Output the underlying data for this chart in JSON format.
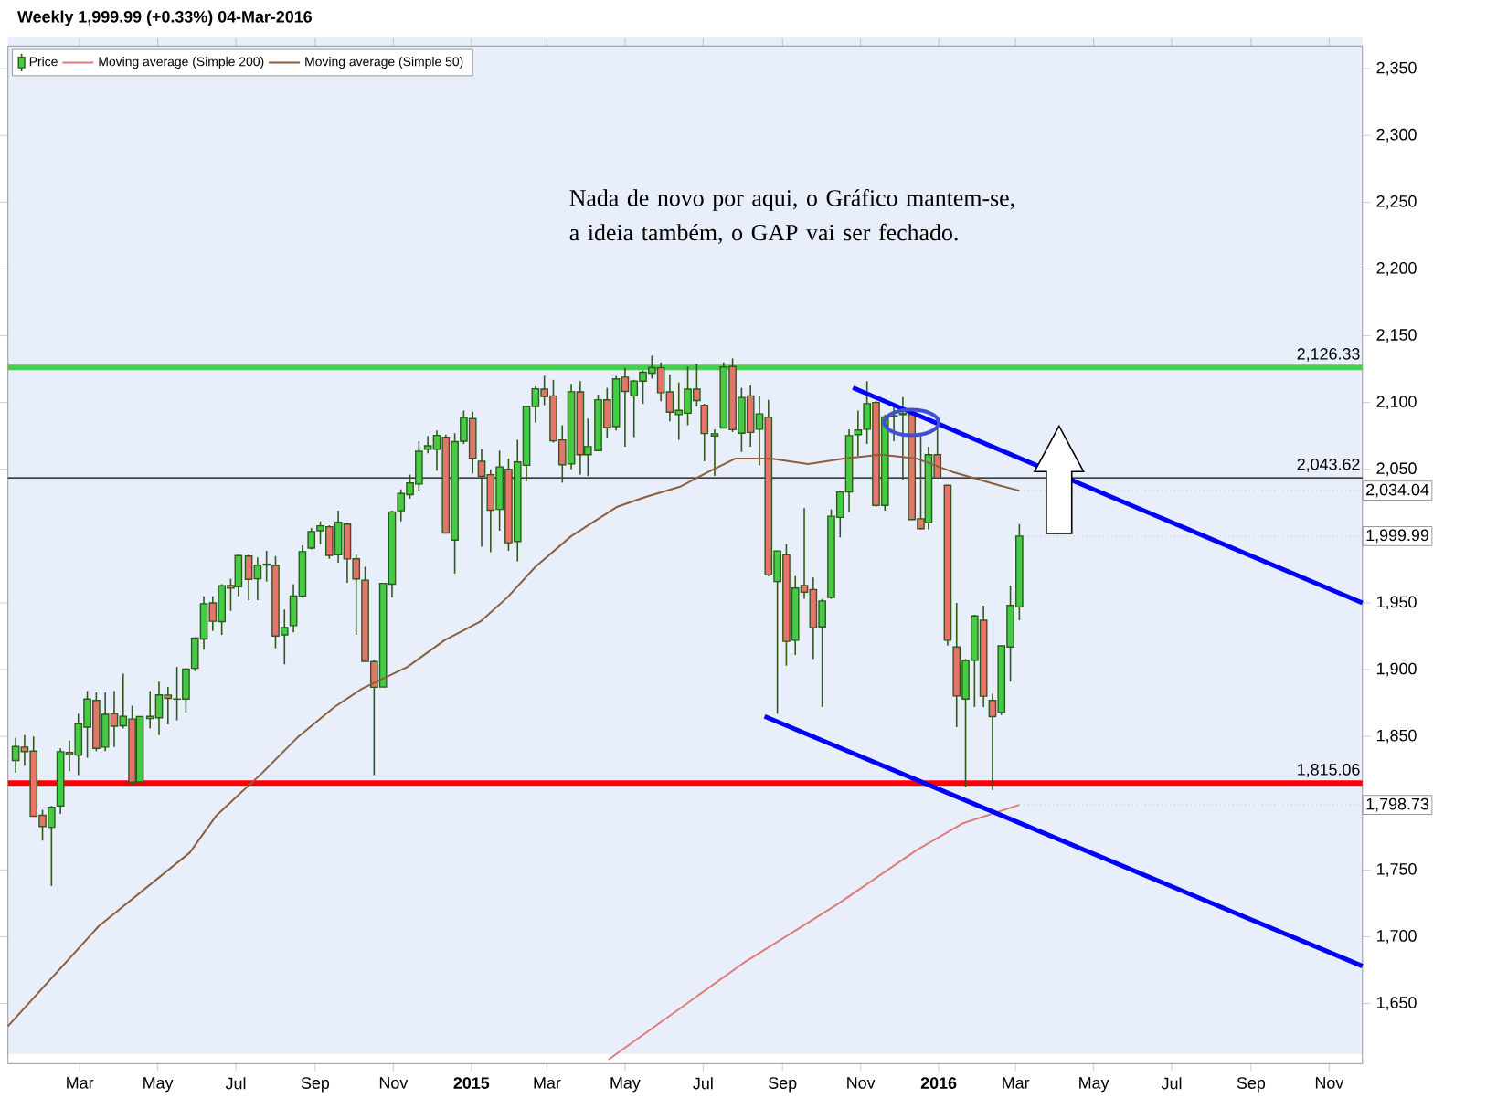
{
  "chart_data": {
    "type": "candlestick",
    "title": "Weekly   1,999.99 (+0.33%)   04-Mar-2016",
    "xlim": [
      "2014-01-04",
      "2016-11-27"
    ],
    "ylim": [
      1605,
      2367
    ],
    "xticks": [
      {
        "value": "2014-03-01",
        "label": "Mar"
      },
      {
        "value": "2014-05-01",
        "label": "May"
      },
      {
        "value": "2014-07-01",
        "label": "Jul"
      },
      {
        "value": "2014-09-01",
        "label": "Sep"
      },
      {
        "value": "2014-11-01",
        "label": "Nov"
      },
      {
        "value": "2015-01-01",
        "label": "2015"
      },
      {
        "value": "2015-03-01",
        "label": "Mar"
      },
      {
        "value": "2015-05-01",
        "label": "May"
      },
      {
        "value": "2015-07-01",
        "label": "Jul"
      },
      {
        "value": "2015-09-01",
        "label": "Sep"
      },
      {
        "value": "2015-11-01",
        "label": "Nov"
      },
      {
        "value": "2016-01-01",
        "label": "2016"
      },
      {
        "value": "2016-03-01",
        "label": "Mar"
      },
      {
        "value": "2016-05-01",
        "label": "May"
      },
      {
        "value": "2016-07-01",
        "label": "Jul"
      },
      {
        "value": "2016-09-01",
        "label": "Sep"
      },
      {
        "value": "2016-11-01",
        "label": "Nov"
      }
    ],
    "yticks": [
      {
        "value": 1650,
        "label": "1,650"
      },
      {
        "value": 1700,
        "label": "1,700"
      },
      {
        "value": 1750,
        "label": "1,750"
      },
      {
        "value": 1850,
        "label": "1,850"
      },
      {
        "value": 1900,
        "label": "1,900"
      },
      {
        "value": 1950,
        "label": "1,950"
      },
      {
        "value": 2050,
        "label": "2,050"
      },
      {
        "value": 2100,
        "label": "2,100"
      },
      {
        "value": 2150,
        "label": "2,150"
      },
      {
        "value": 2200,
        "label": "2,200"
      },
      {
        "value": 2250,
        "label": "2,250"
      },
      {
        "value": 2300,
        "label": "2,300"
      },
      {
        "value": 2350,
        "label": "2,350"
      }
    ],
    "legend": "top left",
    "series": [
      {
        "name": "Price",
        "type": "candlestick",
        "colors": [
          "#44cc44",
          "#e8736c",
          "#e8736c",
          "#e8736c",
          "#44cc44",
          "#44cc44",
          "#e8736c",
          "#44cc44",
          "#44cc44",
          "#e8736c",
          "#44cc44",
          "#e8736c",
          "#44cc44",
          "#e8736c",
          "#44cc44",
          "#e8736c",
          "#44cc44",
          "#e8736c",
          "#e8736c",
          "#44cc44",
          "#44cc44",
          "#44cc44",
          "#e8736c",
          "#44cc44",
          "#e8736c",
          "#44cc44",
          "#e8736c",
          "#44cc44",
          "#e8736c",
          "#e8736c",
          "#44cc44",
          "#44cc44",
          "#44cc44",
          "#44cc44",
          "#44cc44",
          "#e8736c",
          "#44cc44",
          "#e8736c",
          "#e8736c",
          "#e8736c",
          "#e8736c",
          "#44cc44",
          "#44cc44",
          "#44cc44",
          "#44cc44",
          "#44cc44",
          "#44cc44",
          "#44cc44",
          "#e8736c",
          "#44cc44",
          "#44cc44",
          "#e8736c",
          "#e8736c",
          "#e8736c",
          "#44cc44",
          "#e8736c",
          "#44cc44",
          "#44cc44",
          "#44cc44",
          "#e8736c",
          "#e8736c",
          "#e8736c",
          "#44cc44",
          "#e8736c",
          "#44cc44",
          "#44cc44",
          "#e8736c",
          "#44cc44",
          "#e8736c",
          "#44cc44",
          "#44cc44",
          "#44cc44",
          "#e8736c",
          "#e8736c",
          "#44cc44",
          "#44cc44",
          "#e8736c",
          "#e8736c",
          "#44cc44",
          "#44cc44",
          "#e8736c",
          "#44cc44",
          "#e8736c",
          "#44cc44",
          "#e8736c",
          "#44cc44",
          "#e8736c",
          "#44cc44",
          "#e8736c",
          "#e8736c",
          "#44cc44",
          "#44cc44",
          "#44cc44",
          "#44cc44",
          "#44cc44",
          "#44cc44",
          "#e8736c",
          "#44cc44",
          "#44cc44",
          "#44cc44",
          "#e8736c",
          "#e8736c",
          "#44cc44",
          "#e8736c",
          "#e8736c",
          "#e8736c",
          "#44cc44",
          "#44cc44",
          "#e8736c",
          "#e8736c",
          "#44cc44",
          "#44cc44",
          "#44cc44"
        ],
        "x": [
          "2014-01-10",
          "2014-01-17",
          "2014-01-24",
          "2014-01-31",
          "2014-02-07",
          "2014-02-14",
          "2014-02-21",
          "2014-02-28",
          "2014-03-07",
          "2014-03-14",
          "2014-03-21",
          "2014-03-28",
          "2014-04-04",
          "2014-04-11",
          "2014-04-17",
          "2014-04-25",
          "2014-05-02",
          "2014-05-09",
          "2014-05-16",
          "2014-05-23",
          "2014-05-30",
          "2014-06-06",
          "2014-06-13",
          "2014-06-20",
          "2014-06-27",
          "2014-07-03",
          "2014-07-11",
          "2014-07-18",
          "2014-07-25",
          "2014-08-01",
          "2014-08-08",
          "2014-08-15",
          "2014-08-22",
          "2014-08-29",
          "2014-09-05",
          "2014-09-12",
          "2014-09-19",
          "2014-09-26",
          "2014-10-03",
          "2014-10-10",
          "2014-10-17",
          "2014-10-24",
          "2014-10-31",
          "2014-11-07",
          "2014-11-14",
          "2014-11-21",
          "2014-11-28",
          "2014-12-05",
          "2014-12-12",
          "2014-12-19",
          "2014-12-26",
          "2015-01-02",
          "2015-01-09",
          "2015-01-16",
          "2015-01-23",
          "2015-01-30",
          "2015-02-06",
          "2015-02-13",
          "2015-02-20",
          "2015-02-27",
          "2015-03-06",
          "2015-03-13",
          "2015-03-20",
          "2015-03-27",
          "2015-04-02",
          "2015-04-10",
          "2015-04-17",
          "2015-04-24",
          "2015-05-01",
          "2015-05-08",
          "2015-05-15",
          "2015-05-22",
          "2015-05-29",
          "2015-06-05",
          "2015-06-12",
          "2015-06-19",
          "2015-06-26",
          "2015-07-02",
          "2015-07-10",
          "2015-07-17",
          "2015-07-24",
          "2015-07-31",
          "2015-08-07",
          "2015-08-14",
          "2015-08-21",
          "2015-08-28",
          "2015-09-04",
          "2015-09-11",
          "2015-09-18",
          "2015-09-25",
          "2015-10-02",
          "2015-10-09",
          "2015-10-16",
          "2015-10-23",
          "2015-10-30",
          "2015-11-06",
          "2015-11-13",
          "2015-11-20",
          "2015-11-27",
          "2015-12-04",
          "2015-12-11",
          "2015-12-18",
          "2015-12-24",
          "2015-12-31",
          "2016-01-08",
          "2016-01-15",
          "2016-01-22",
          "2016-01-29",
          "2016-02-05",
          "2016-02-12",
          "2016-02-19",
          "2016-02-26",
          "2016-03-04"
        ],
        "ohlc": [
          [
            1832,
            1849,
            1823,
            1842.4
          ],
          [
            1842,
            1851,
            1828,
            1838.7
          ],
          [
            1839,
            1850,
            1790,
            1790.3
          ],
          [
            1791,
            1795,
            1772,
            1782.6
          ],
          [
            1782,
            1798,
            1738,
            1797
          ],
          [
            1798,
            1841,
            1792,
            1838.6
          ],
          [
            1838,
            1847,
            1824,
            1836.3
          ],
          [
            1836,
            1867,
            1821,
            1859.5
          ],
          [
            1857,
            1884,
            1834,
            1878
          ],
          [
            1877,
            1883,
            1839,
            1841.1
          ],
          [
            1842,
            1883,
            1839,
            1866.5
          ],
          [
            1867,
            1884,
            1842,
            1857.6
          ],
          [
            1858,
            1897,
            1856,
            1865.1
          ],
          [
            1863,
            1873,
            1814,
            1815.7
          ],
          [
            1816,
            1865,
            1816,
            1864.9
          ],
          [
            1865,
            1884,
            1856,
            1863.4
          ],
          [
            1864,
            1891,
            1851,
            1881.1
          ],
          [
            1881,
            1887,
            1859,
            1878.5
          ],
          [
            1878,
            1902,
            1862,
            1877.9
          ],
          [
            1878,
            1901,
            1868,
            1900.5
          ],
          [
            1901,
            1924,
            1899,
            1923.6
          ],
          [
            1923,
            1955,
            1915,
            1949.4
          ],
          [
            1950,
            1955,
            1929,
            1936.2
          ],
          [
            1936,
            1964,
            1926,
            1962.9
          ],
          [
            1963,
            1968,
            1944,
            1961
          ],
          [
            1962,
            1986,
            1955,
            1985.4
          ],
          [
            1985,
            1986,
            1952,
            1967.6
          ],
          [
            1968,
            1984,
            1952,
            1978.2
          ],
          [
            1979,
            1989,
            1966,
            1978.3
          ],
          [
            1978,
            1985,
            1916,
            1925.2
          ],
          [
            1926,
            1945,
            1904,
            1931.6
          ],
          [
            1933,
            1964,
            1928,
            1955.1
          ],
          [
            1955,
            1993,
            1954,
            1988.4
          ],
          [
            1991,
            2006,
            1990,
            2003.4
          ],
          [
            2004,
            2011,
            1994,
            2007.7
          ],
          [
            2007,
            2008,
            1983,
            1985.5
          ],
          [
            1986,
            2019,
            1980,
            2010.4
          ],
          [
            2009,
            2010,
            1965,
            1982.9
          ],
          [
            1983,
            1986,
            1926,
            1967.9
          ],
          [
            1967,
            1977,
            1906,
            1906.1
          ],
          [
            1906,
            1907,
            1821,
            1886.8
          ],
          [
            1887,
            1965,
            1887,
            1964.6
          ],
          [
            1964,
            2019,
            1954,
            2018.1
          ],
          [
            2019,
            2035,
            2011,
            2031.9
          ],
          [
            2031,
            2046,
            2028,
            2039.8
          ],
          [
            2039,
            2071,
            2034,
            2063.5
          ],
          [
            2065,
            2075,
            2062,
            2067.6
          ],
          [
            2065,
            2079,
            2049,
            2075.4
          ],
          [
            2074,
            2076,
            2002,
            2002.3
          ],
          [
            1997,
            2077,
            1972,
            2070.7
          ],
          [
            2071,
            2094,
            2069,
            2088.8
          ],
          [
            2088,
            2093,
            2047,
            2058.2
          ],
          [
            2056,
            2065,
            1992,
            2044.8
          ],
          [
            2046,
            2050,
            1988,
            2019.4
          ],
          [
            2020,
            2064,
            2004,
            2051.8
          ],
          [
            2050,
            2058,
            1989,
            1995
          ],
          [
            1996,
            2072,
            1981,
            2055.5
          ],
          [
            2053,
            2097,
            2041,
            2097
          ],
          [
            2097,
            2112,
            2085,
            2110.3
          ],
          [
            2110,
            2120,
            2098,
            2104.5
          ],
          [
            2105,
            2117,
            2070,
            2071.3
          ],
          [
            2072,
            2083,
            2040,
            2053.4
          ],
          [
            2054,
            2114,
            2050,
            2108.1
          ],
          [
            2108,
            2116,
            2046,
            2061
          ],
          [
            2061,
            2088,
            2045,
            2067
          ],
          [
            2064,
            2106,
            2064,
            2102.1
          ],
          [
            2102,
            2111,
            2073,
            2081.2
          ],
          [
            2082,
            2120,
            2079,
            2117.7
          ],
          [
            2119,
            2126,
            2067,
            2108.3
          ],
          [
            2105,
            2117,
            2074,
            2116.1
          ],
          [
            2116,
            2124,
            2099,
            2122.7
          ],
          [
            2122,
            2135,
            2118,
            2126.1
          ],
          [
            2126,
            2130,
            2101,
            2107.4
          ],
          [
            2108,
            2121,
            2086,
            2092.8
          ],
          [
            2091,
            2115,
            2072,
            2094.1
          ],
          [
            2092,
            2127,
            2083,
            2110
          ],
          [
            2110,
            2129,
            2097,
            2101.5
          ],
          [
            2098,
            2099,
            2056,
            2076.8
          ],
          [
            2075,
            2080,
            2045,
            2076.6
          ],
          [
            2081,
            2130,
            2081,
            2126.6
          ],
          [
            2127,
            2133,
            2078,
            2079.7
          ],
          [
            2077,
            2111,
            2063,
            2103.8
          ],
          [
            2105,
            2113,
            2067,
            2077.6
          ],
          [
            2080,
            2105,
            2053,
            2091.5
          ],
          [
            2089,
            2102,
            1970,
            1970.9
          ],
          [
            1966,
            1989,
            1867,
            1988.9
          ],
          [
            1986,
            1994,
            1903,
            1921.2
          ],
          [
            1922,
            1970,
            1911,
            1961.1
          ],
          [
            1963,
            2021,
            1953,
            1958
          ],
          [
            1960,
            1969,
            1908,
            1931.3
          ],
          [
            1932,
            1953,
            1872,
            1951.4
          ],
          [
            1954,
            2020,
            1953,
            2014.9
          ],
          [
            2014,
            2034,
            1999,
            2033.1
          ],
          [
            2033,
            2080,
            2018,
            2075.2
          ],
          [
            2076,
            2094,
            2060,
            2079.4
          ],
          [
            2080,
            2116,
            2069,
            2099.2
          ],
          [
            2100,
            2101,
            2022,
            2023
          ],
          [
            2023,
            2091,
            2019,
            2089.2
          ],
          [
            2090,
            2098,
            2071,
            2090.1
          ],
          [
            2091,
            2104,
            2042,
            2091.7
          ],
          [
            2091,
            2094,
            2012,
            2012.4
          ],
          [
            2013,
            2076,
            2005,
            2005.6
          ],
          [
            2010,
            2067,
            2005,
            2061
          ],
          [
            2061,
            2081,
            2043,
            2043.6
          ],
          [
            2038,
            2038,
            1918,
            1922
          ],
          [
            1917,
            1950,
            1857,
            1880.3
          ],
          [
            1878,
            1908,
            1812,
            1906.9
          ],
          [
            1907,
            1941,
            1872,
            1940.2
          ],
          [
            1937,
            1948,
            1872,
            1880.1
          ],
          [
            1877,
            1882,
            1810,
            1864.8
          ],
          [
            1868,
            1918,
            1866,
            1917.8
          ],
          [
            1917,
            1963,
            1891,
            1948.1
          ],
          [
            1947,
            2009,
            1937,
            1999.99
          ]
        ]
      },
      {
        "name": "Moving average (Simple 200)",
        "type": "line",
        "color": "#e07b7b",
        "x": [
          "2015-04-18",
          "2015-08-01",
          "2015-10-15",
          "2015-12-15",
          "2016-01-20",
          "2016-03-04"
        ],
        "values": [
          1608,
          1680,
          1725,
          1765,
          1785,
          1798.73
        ]
      },
      {
        "name": "Moving average (Simple 50)",
        "type": "line",
        "color": "#8b5e3c",
        "x": [
          "2014-01-04",
          "2014-03-16",
          "2014-05-26",
          "2014-06-16",
          "2014-07-22",
          "2014-08-19",
          "2014-09-16",
          "2014-10-08",
          "2014-11-12",
          "2014-12-11",
          "2015-01-08",
          "2015-01-29",
          "2015-02-20",
          "2015-03-20",
          "2015-04-25",
          "2015-05-16",
          "2015-06-13",
          "2015-07-05",
          "2015-07-26",
          "2015-08-23",
          "2015-09-21",
          "2015-10-19",
          "2015-11-17",
          "2015-12-15",
          "2016-01-12",
          "2016-02-17",
          "2016-03-04"
        ],
        "values": [
          1633,
          1708,
          1763,
          1791,
          1823,
          1850,
          1872,
          1886,
          1902,
          1922,
          1936,
          1954,
          1977,
          2000,
          2022,
          2029,
          2037,
          2048,
          2058,
          2058,
          2054,
          2058,
          2061,
          2058,
          2048,
          2038,
          2034.04
        ]
      },
      {
        "type": "line",
        "color": "#0000ff",
        "x": [
          "2015-10-26",
          "2016-11-27"
        ],
        "values": [
          2111,
          1950
        ]
      },
      {
        "type": "line",
        "color": "#0000ff",
        "x": [
          "2015-08-18",
          "2016-11-27"
        ],
        "values": [
          1865,
          1678
        ]
      }
    ],
    "ref_lines": [
      {
        "axis": "y",
        "value": 2126.33,
        "label": "2,126.33",
        "color": "#4ccc4c"
      },
      {
        "axis": "y",
        "value": 2043.62,
        "label": "2,043.62",
        "color": "#000000"
      },
      {
        "axis": "y",
        "value": 1815.06,
        "label": "1,815.06",
        "color": "#ff0000"
      }
    ],
    "annotations": [
      "Nada de novo por aqui, o Gráfico mantem-se, a ideia também, o GAP vai ser fechado.",
      {
        "text": "2,034.04",
        "x": "2016-03-04",
        "y": 2034.04
      },
      {
        "text": "1,999.99",
        "x": "2016-03-04",
        "y": 1999.99
      },
      {
        "text": "1,798.73",
        "x": "2016-03-04",
        "y": 1798.73
      }
    ]
  }
}
